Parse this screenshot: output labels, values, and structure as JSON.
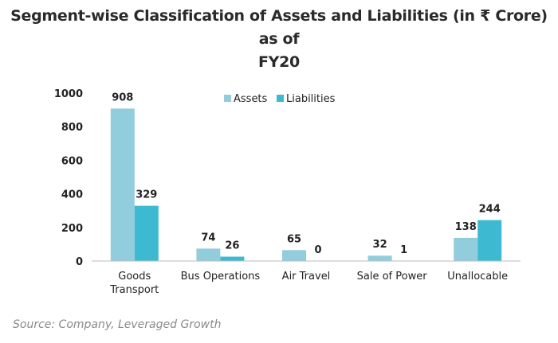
{
  "title_line1": "Segment-wise Classification of Assets and Liabilities (in ₹ Crore) as of",
  "title_line2": "FY20",
  "source": "Source: Company, Leveraged Growth",
  "chart_data": {
    "type": "bar",
    "categories": [
      [
        "Goods",
        "Transport"
      ],
      [
        "Bus Operations"
      ],
      [
        "Air Travel"
      ],
      [
        "Sale of Power"
      ],
      [
        "Unallocable"
      ]
    ],
    "series": [
      {
        "name": "Assets",
        "color": "#92CDDD",
        "values": [
          908,
          74,
          65,
          32,
          138
        ]
      },
      {
        "name": "Liabilities",
        "color": "#3DBAD1",
        "values": [
          329,
          26,
          0,
          1,
          244
        ]
      }
    ],
    "ylim": [
      0,
      1000
    ],
    "yticks": [
      0,
      200,
      400,
      600,
      800,
      1000
    ],
    "legend_position": "top-center",
    "grid": false
  }
}
